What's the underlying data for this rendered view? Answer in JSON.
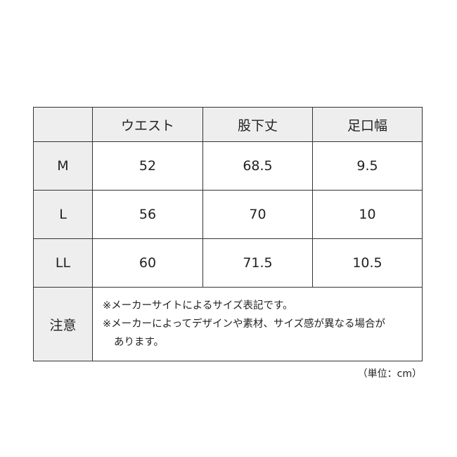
{
  "table": {
    "headers": [
      "",
      "ウエスト",
      "股下丈",
      "足口幅"
    ],
    "rows": [
      {
        "size": "M",
        "values": [
          "52",
          "68.5",
          "9.5"
        ]
      },
      {
        "size": "L",
        "values": [
          "56",
          "70",
          "10"
        ]
      },
      {
        "size": "LL",
        "values": [
          "60",
          "71.5",
          "10.5"
        ]
      }
    ],
    "note_label": "注意",
    "notes": [
      "※メーカーサイトによるサイズ表記です。",
      "※メーカーによってデザインや素材、サイズ感が異なる場合が",
      "あります。"
    ]
  },
  "unit": "（単位：cm）",
  "colors": {
    "header_bg": "#eeeeee",
    "border": "#333333"
  }
}
